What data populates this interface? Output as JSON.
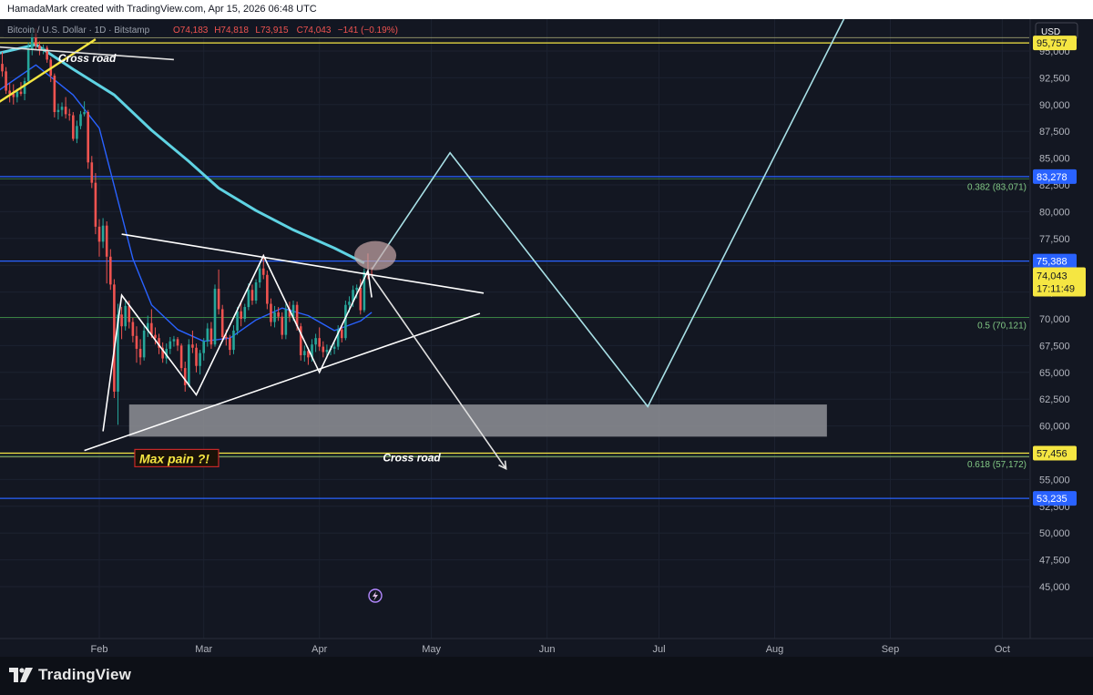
{
  "header": {
    "attribution": "HamadaMark created with TradingView.com, Apr 15, 2026 06:48 UTC"
  },
  "legend": {
    "symbol": "Bitcoin / U.S. Dollar · 1D · Bitstamp",
    "open": "O74,183",
    "high": "H74,818",
    "low": "L73,915",
    "close": "C74,043",
    "change": "−141 (−0.19%)"
  },
  "currency_button": "USD",
  "footer": {
    "brand": "TradingView"
  },
  "colors": {
    "background": "#131722",
    "up": "#26a69a",
    "down": "#ef5350",
    "ma_fast": "#2962ff",
    "ma_slow": "#5fd3e3",
    "yellow": "#f5e642",
    "blue_line": "#2962ff",
    "fib_green": "#4caf50",
    "zone": "#8f9096"
  },
  "chart_data": {
    "type": "candlestick",
    "title": "",
    "xlabel": "",
    "ylabel": "",
    "ylim": [
      43000,
      96500
    ],
    "y_ticks": [
      "45,000",
      "47,500",
      "50,000",
      "52,500",
      "55,000",
      "57,500",
      "60,000",
      "62,500",
      "65,000",
      "67,500",
      "70,000",
      "72,500",
      "75,000",
      "77,500",
      "80,000",
      "82,500",
      "85,000",
      "87,500",
      "90,000",
      "92,500",
      "95,000"
    ],
    "x_ticks": [
      "Feb",
      "Mar",
      "Apr",
      "May",
      "Jun",
      "Jul",
      "Aug",
      "Sep",
      "Oct"
    ],
    "horizontal_levels": [
      {
        "label": "83,278",
        "value": 83278,
        "color": "#2962ff"
      },
      {
        "label": "75,388",
        "value": 75388,
        "color": "#2962ff"
      },
      {
        "label": "57,456",
        "value": 57456,
        "color": "#f5e642"
      },
      {
        "label": "53,235",
        "value": 53235,
        "color": "#2962ff"
      },
      {
        "label": "95,757",
        "value": 95757,
        "color": "#f5e642"
      }
    ],
    "fib_levels": [
      {
        "label": "0.382 (83,071)",
        "value": 83071
      },
      {
        "label": "0.5 (70,121)",
        "value": 70121
      },
      {
        "label": "0.618 (57,172)",
        "value": 57172
      }
    ],
    "last_price": {
      "price": "74,043",
      "countdown": "17:11:49",
      "value": 74043
    },
    "zone": {
      "from_date": "2026-02-09",
      "to_date": "2026-08-15",
      "low": 59000,
      "high": 62000
    },
    "annotations": [
      {
        "text": "Cross road",
        "date": "2026-01-21",
        "value": 94000
      },
      {
        "text": "Cross road",
        "date": "2026-04-18",
        "value": 56700
      },
      {
        "text": "Max pain ?!",
        "date": "2026-02-11",
        "value": 56700
      }
    ],
    "candles": [
      [
        "2026-01-04",
        91000,
        93100,
        90300,
        92300
      ],
      [
        "2026-01-05",
        92300,
        94300,
        91800,
        93800
      ],
      [
        "2026-01-06",
        93800,
        94900,
        92600,
        93100
      ],
      [
        "2026-01-07",
        93100,
        93500,
        91000,
        91300
      ],
      [
        "2026-01-08",
        91300,
        92000,
        90200,
        91000
      ],
      [
        "2026-01-09",
        91000,
        91900,
        90000,
        90700
      ],
      [
        "2026-01-10",
        90700,
        91500,
        90200,
        91200
      ],
      [
        "2026-01-11",
        91200,
        92100,
        90800,
        91000
      ],
      [
        "2026-01-12",
        91000,
        92500,
        90400,
        92200
      ],
      [
        "2026-01-13",
        92200,
        95800,
        92000,
        95200
      ],
      [
        "2026-01-14",
        95200,
        97200,
        94600,
        96600
      ],
      [
        "2026-01-15",
        96600,
        97100,
        95100,
        95500
      ],
      [
        "2026-01-16",
        95500,
        95900,
        94600,
        95100
      ],
      [
        "2026-01-17",
        95100,
        95600,
        94700,
        95300
      ],
      [
        "2026-01-18",
        95300,
        95500,
        93900,
        94200
      ],
      [
        "2026-01-19",
        94200,
        94400,
        92100,
        92700
      ],
      [
        "2026-01-20",
        92700,
        92900,
        88800,
        89300
      ],
      [
        "2026-01-21",
        89300,
        90100,
        88600,
        89500
      ],
      [
        "2026-01-22",
        89500,
        90200,
        88900,
        89800
      ],
      [
        "2026-01-23",
        89800,
        90700,
        88700,
        89100
      ],
      [
        "2026-01-24",
        89100,
        89600,
        88500,
        89000
      ],
      [
        "2026-01-25",
        89000,
        89300,
        86600,
        86800
      ],
      [
        "2026-01-26",
        86800,
        88500,
        86400,
        88000
      ],
      [
        "2026-01-27",
        88000,
        89400,
        87700,
        89100
      ],
      [
        "2026-01-28",
        89100,
        90300,
        88900,
        89300
      ],
      [
        "2026-01-29",
        89300,
        89500,
        84000,
        84600
      ],
      [
        "2026-01-30",
        84600,
        85200,
        82200,
        82700
      ],
      [
        "2026-01-31",
        82700,
        83600,
        77900,
        78600
      ],
      [
        "2026-02-01",
        78600,
        79300,
        75800,
        77200
      ],
      [
        "2026-02-02",
        77200,
        79400,
        76600,
        78700
      ],
      [
        "2026-02-03",
        78700,
        79100,
        73300,
        75800
      ],
      [
        "2026-02-04",
        75800,
        76500,
        72700,
        73200
      ],
      [
        "2026-02-05",
        73200,
        73700,
        62600,
        63200
      ],
      [
        "2026-02-06",
        63200,
        71400,
        60100,
        70400
      ],
      [
        "2026-02-07",
        70400,
        71100,
        68100,
        69300
      ],
      [
        "2026-02-08",
        69300,
        71800,
        68900,
        71200
      ],
      [
        "2026-02-09",
        71200,
        71700,
        69100,
        69700
      ],
      [
        "2026-02-10",
        69700,
        70100,
        67800,
        68400
      ],
      [
        "2026-02-11",
        68400,
        69300,
        65900,
        67200
      ],
      [
        "2026-02-12",
        67200,
        68100,
        65700,
        66400
      ],
      [
        "2026-02-13",
        66400,
        69500,
        66100,
        68900
      ],
      [
        "2026-02-14",
        68900,
        70300,
        68300,
        69600
      ],
      [
        "2026-02-15",
        69600,
        70900,
        68200,
        68500
      ],
      [
        "2026-02-16",
        68500,
        69200,
        67600,
        68200
      ],
      [
        "2026-02-17",
        68200,
        68600,
        66700,
        67300
      ],
      [
        "2026-02-18",
        67300,
        67800,
        65900,
        66300
      ],
      [
        "2026-02-19",
        66300,
        67700,
        65800,
        67200
      ],
      [
        "2026-02-20",
        67200,
        68300,
        66700,
        67900
      ],
      [
        "2026-02-21",
        67900,
        68400,
        67400,
        68100
      ],
      [
        "2026-02-22",
        68100,
        68300,
        67000,
        67500
      ],
      [
        "2026-02-23",
        67500,
        67700,
        65100,
        65400
      ],
      [
        "2026-02-24",
        65400,
        66000,
        63200,
        63800
      ],
      [
        "2026-02-25",
        63800,
        68100,
        63600,
        67600
      ],
      [
        "2026-02-26",
        67600,
        68900,
        66800,
        67300
      ],
      [
        "2026-02-27",
        67300,
        67700,
        65000,
        65600
      ],
      [
        "2026-02-28",
        65600,
        67100,
        64800,
        66800
      ],
      [
        "2026-03-01",
        66800,
        68200,
        66100,
        67900
      ],
      [
        "2026-03-02",
        67900,
        69600,
        67400,
        69100
      ],
      [
        "2026-03-03",
        69100,
        69700,
        67200,
        67600
      ],
      [
        "2026-03-04",
        67600,
        73200,
        67400,
        72800
      ],
      [
        "2026-03-05",
        72800,
        74600,
        70400,
        70900
      ],
      [
        "2026-03-06",
        70900,
        71300,
        67900,
        68300
      ],
      [
        "2026-03-07",
        68300,
        69000,
        67500,
        68200
      ],
      [
        "2026-03-08",
        68200,
        68500,
        66600,
        67100
      ],
      [
        "2026-03-09",
        67100,
        69400,
        66700,
        68900
      ],
      [
        "2026-03-10",
        68900,
        71100,
        68500,
        70700
      ],
      [
        "2026-03-11",
        70700,
        71500,
        69300,
        70000
      ],
      [
        "2026-03-12",
        70000,
        71400,
        69700,
        71100
      ],
      [
        "2026-03-13",
        71100,
        73300,
        70800,
        72700
      ],
      [
        "2026-03-14",
        72700,
        73200,
        71300,
        71700
      ],
      [
        "2026-03-15",
        71700,
        73700,
        71400,
        73400
      ],
      [
        "2026-03-16",
        73400,
        75200,
        72900,
        74700
      ],
      [
        "2026-03-17",
        74700,
        76000,
        73700,
        74100
      ],
      [
        "2026-03-18",
        74100,
        74500,
        70900,
        71400
      ],
      [
        "2026-03-19",
        71400,
        71900,
        69300,
        69700
      ],
      [
        "2026-03-20",
        69700,
        71200,
        69200,
        70600
      ],
      [
        "2026-03-21",
        70600,
        71100,
        69800,
        70200
      ],
      [
        "2026-03-22",
        70200,
        70600,
        68100,
        68500
      ],
      [
        "2026-03-23",
        68500,
        71400,
        68100,
        70900
      ],
      [
        "2026-03-24",
        70900,
        71600,
        69700,
        70200
      ],
      [
        "2026-03-25",
        70200,
        71700,
        69800,
        71300
      ],
      [
        "2026-03-26",
        71300,
        71600,
        68900,
        69300
      ],
      [
        "2026-03-27",
        69300,
        69600,
        66100,
        66600
      ],
      [
        "2026-03-28",
        66600,
        67500,
        66000,
        67000
      ],
      [
        "2026-03-29",
        67000,
        67300,
        65700,
        66400
      ],
      [
        "2026-03-30",
        66400,
        68100,
        66000,
        67600
      ],
      [
        "2026-03-31",
        67600,
        68600,
        66900,
        68200
      ],
      [
        "2026-04-01",
        68200,
        69200,
        67000,
        67400
      ],
      [
        "2026-04-02",
        67400,
        67900,
        66400,
        66900
      ],
      [
        "2026-04-03",
        66900,
        67600,
        66300,
        67100
      ],
      [
        "2026-04-04",
        67100,
        67500,
        66600,
        67200
      ],
      [
        "2026-04-05",
        67200,
        67800,
        66700,
        67400
      ],
      [
        "2026-04-06",
        67400,
        69400,
        67100,
        69000
      ],
      [
        "2026-04-07",
        69000,
        69300,
        67800,
        68200
      ],
      [
        "2026-04-08",
        68200,
        71700,
        68000,
        71300
      ],
      [
        "2026-04-09",
        71300,
        72100,
        70600,
        71600
      ],
      [
        "2026-04-10",
        71600,
        73100,
        71100,
        72700
      ],
      [
        "2026-04-11",
        72700,
        73200,
        71900,
        72900
      ],
      [
        "2026-04-12",
        72900,
        73700,
        70400,
        70800
      ],
      [
        "2026-04-13",
        70800,
        74700,
        70600,
        74400
      ],
      [
        "2026-04-14",
        74400,
        76100,
        73700,
        74183
      ],
      [
        "2026-04-15",
        74183,
        74818,
        73915,
        74043
      ]
    ],
    "ma_slow": [
      [
        "2026-01-05",
        94800
      ],
      [
        "2026-01-15",
        95600
      ],
      [
        "2026-01-25",
        93300
      ],
      [
        "2026-02-05",
        90900
      ],
      [
        "2026-02-15",
        87600
      ],
      [
        "2026-02-25",
        84700
      ],
      [
        "2026-03-05",
        82200
      ],
      [
        "2026-03-15",
        80100
      ],
      [
        "2026-03-25",
        78300
      ],
      [
        "2026-04-05",
        76600
      ],
      [
        "2026-04-13",
        75200
      ]
    ],
    "ma_fast": [
      [
        "2026-01-05",
        91300
      ],
      [
        "2026-01-15",
        93700
      ],
      [
        "2026-01-25",
        90900
      ],
      [
        "2026-02-01",
        87800
      ],
      [
        "2026-02-05",
        82400
      ],
      [
        "2026-02-10",
        75600
      ],
      [
        "2026-02-15",
        71300
      ],
      [
        "2026-02-22",
        69000
      ],
      [
        "2026-03-01",
        67900
      ],
      [
        "2026-03-08",
        68200
      ],
      [
        "2026-03-15",
        69900
      ],
      [
        "2026-03-22",
        71000
      ],
      [
        "2026-03-29",
        70300
      ],
      [
        "2026-04-05",
        68900
      ],
      [
        "2026-04-12",
        69800
      ],
      [
        "2026-04-15",
        70600
      ]
    ],
    "drawings": [
      {
        "kind": "line",
        "color": "#f5e642",
        "points": [
          [
            "2026-01-01",
            89300
          ],
          [
            "2026-01-31",
            96100
          ]
        ]
      },
      {
        "kind": "line",
        "color": "#e0e0e0",
        "points": [
          [
            "2026-01-04",
            95400
          ],
          [
            "2026-02-21",
            94200
          ]
        ]
      },
      {
        "kind": "line",
        "color": "#ffffff",
        "points": [
          [
            "2026-02-07",
            77900
          ],
          [
            "2026-05-15",
            72400
          ]
        ]
      },
      {
        "kind": "line",
        "color": "#ffffff",
        "points": [
          [
            "2026-01-28",
            57700
          ],
          [
            "2026-05-14",
            70500
          ]
        ]
      },
      {
        "kind": "polyline",
        "color": "#ffffff",
        "points": [
          [
            "2026-02-02",
            59500
          ],
          [
            "2026-02-07",
            72200
          ],
          [
            "2026-02-27",
            62900
          ],
          [
            "2026-03-17",
            75900
          ],
          [
            "2026-04-01",
            65000
          ],
          [
            "2026-04-14",
            74500
          ],
          [
            "2026-04-15",
            72000
          ]
        ]
      },
      {
        "kind": "path",
        "color": "#a8e0e6",
        "points": [
          [
            "2026-04-15",
            74600
          ],
          [
            "2026-05-06",
            85500
          ],
          [
            "2026-06-28",
            61800
          ],
          [
            "2026-08-21",
            99000
          ]
        ]
      },
      {
        "kind": "arrow",
        "color": "#e0e0e0",
        "points": [
          [
            "2026-04-15",
            74000
          ],
          [
            "2026-05-21",
            56000
          ]
        ]
      },
      {
        "kind": "ellipse",
        "color": "#c9a8a8",
        "center": [
          "2026-04-15",
          75900
        ]
      }
    ]
  }
}
